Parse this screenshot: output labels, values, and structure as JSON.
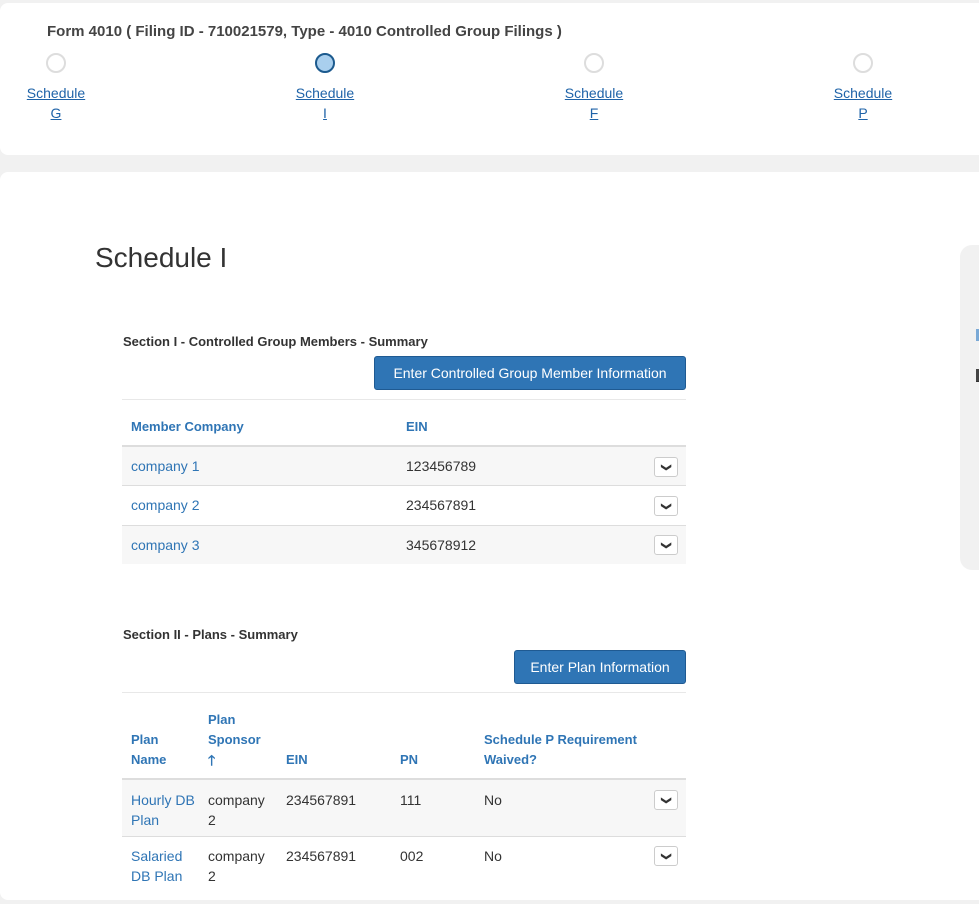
{
  "header": {
    "title": "Form 4010 ( Filing ID - 710021579, Type - 4010 Controlled Group Filings )",
    "steps": [
      {
        "label": "Schedule",
        "letter": "G",
        "active": false
      },
      {
        "label": "Schedule",
        "letter": "I",
        "active": true
      },
      {
        "label": "Schedule",
        "letter": "F",
        "active": false
      },
      {
        "label": "Schedule",
        "letter": "P",
        "active": false
      }
    ]
  },
  "main": {
    "title": "Schedule I",
    "section1": {
      "heading": "Section I - Controlled Group Members - Summary",
      "button": "Enter Controlled Group Member Information",
      "columns": [
        "Member Company",
        "EIN"
      ],
      "rows": [
        {
          "company": "company 1",
          "ein": "123456789"
        },
        {
          "company": "company 2",
          "ein": "234567891"
        },
        {
          "company": "company 3",
          "ein": "345678912"
        }
      ]
    },
    "section2": {
      "heading": "Section II - Plans - Summary",
      "button": "Enter Plan Information",
      "columns": {
        "plan_name": "Plan Name",
        "plan_sponsor": "Plan Sponsor",
        "ein": "EIN",
        "pn": "PN",
        "waived": "Schedule P Requirement Waived?"
      },
      "sort_icon": "arrow-up-icon",
      "rows": [
        {
          "plan": "Hourly DB Plan",
          "sponsor": "company 2",
          "ein": "234567891",
          "pn": "111",
          "waived": "No"
        },
        {
          "plan": "Salaried DB Plan",
          "sponsor": "company 2",
          "ein": "234567891",
          "pn": "002",
          "waived": "No"
        }
      ]
    }
  },
  "colors": {
    "accent": "#2f75b5",
    "active_step": "#a9cfee"
  }
}
